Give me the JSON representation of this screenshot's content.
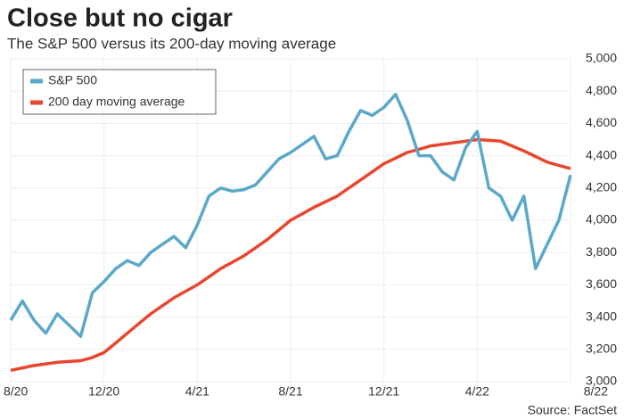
{
  "chart_data": {
    "type": "line",
    "title": "Close but no cigar",
    "subtitle": "The S&P 500 versus its 200-day moving average",
    "source": "Source: FactSet",
    "categories": [
      "8/20",
      null,
      null,
      null,
      null,
      null,
      null,
      null,
      "12/20",
      null,
      null,
      null,
      null,
      null,
      null,
      null,
      "4/21",
      null,
      null,
      null,
      null,
      null,
      null,
      null,
      "8/21",
      null,
      null,
      null,
      null,
      null,
      null,
      null,
      "12/21",
      null,
      null,
      null,
      null,
      null,
      null,
      null,
      "4/22",
      null,
      null,
      null,
      null,
      null,
      null,
      null,
      "8/22"
    ],
    "series": [
      {
        "name": "S&P 500",
        "color": "#5ba8ca",
        "values": [
          3380,
          3500,
          3380,
          3300,
          3420,
          3350,
          3280,
          3550,
          3620,
          3700,
          3750,
          3720,
          3800,
          3850,
          3900,
          3830,
          3970,
          4150,
          4200,
          4180,
          4190,
          4220,
          4300,
          4380,
          4420,
          4470,
          4520,
          4380,
          4400,
          4550,
          4680,
          4650,
          4700,
          4780,
          4620,
          4400,
          4400,
          4300,
          4250,
          4450,
          4550,
          4200,
          4150,
          4000,
          4150,
          3700,
          3850,
          4000,
          4280
        ]
      },
      {
        "name": "200 day moving average",
        "color": "#e8462f",
        "values": [
          3070,
          3085,
          3100,
          3110,
          3120,
          3125,
          3130,
          3150,
          3180,
          3240,
          3300,
          3360,
          3420,
          3470,
          3520,
          3560,
          3600,
          3650,
          3700,
          3740,
          3780,
          3830,
          3880,
          3940,
          4000,
          4040,
          4080,
          4115,
          4150,
          4200,
          4250,
          4300,
          4350,
          4385,
          4420,
          4440,
          4460,
          4470,
          4480,
          4490,
          4500,
          4495,
          4490,
          4460,
          4430,
          4395,
          4360,
          4340,
          4320
        ]
      }
    ],
    "ylim": [
      3000,
      5000
    ],
    "yticks": [
      {
        "value": 3000,
        "label": "3,000"
      },
      {
        "value": 3200,
        "label": "3,200"
      },
      {
        "value": 3400,
        "label": "3,400"
      },
      {
        "value": 3600,
        "label": "3,600"
      },
      {
        "value": 3800,
        "label": "3,800"
      },
      {
        "value": 4000,
        "label": "4,000"
      },
      {
        "value": 4200,
        "label": "4,200"
      },
      {
        "value": 4400,
        "label": "4,400"
      },
      {
        "value": 4600,
        "label": "4,600"
      },
      {
        "value": 4800,
        "label": "4,800"
      },
      {
        "value": 5000,
        "label": "5,000"
      }
    ],
    "grid": true,
    "legend": "top-left"
  }
}
